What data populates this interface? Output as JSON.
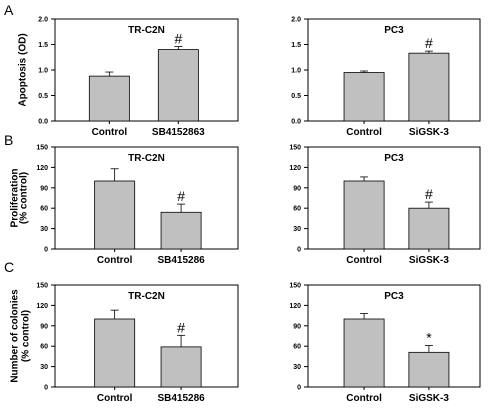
{
  "panel_letters": [
    "A",
    "B",
    "C"
  ],
  "row_ylabels": [
    [
      "Apoptosis (OD)"
    ],
    [
      "Proliferation",
      "(% control)"
    ],
    [
      "Number of colonies",
      "(% control)"
    ]
  ],
  "colors": {
    "bar": "#c0c0c0",
    "stroke": "#000000"
  },
  "chart_data": [
    {
      "type": "bar",
      "title": "TR-C2N",
      "categories": [
        "Control",
        "SB4152863"
      ],
      "values": [
        0.88,
        1.4
      ],
      "errors": [
        0.08,
        0.06
      ],
      "annotations": [
        "",
        "#"
      ],
      "ylabel": "Apoptosis (OD)",
      "ylim": [
        0,
        2.0
      ],
      "yticks": [
        "0.0",
        "0.5",
        "1.0",
        "1.5",
        "2.0"
      ],
      "ytick_values": [
        0,
        0.5,
        1.0,
        1.5,
        2.0
      ]
    },
    {
      "type": "bar",
      "title": "PC3",
      "categories": [
        "Control",
        "SiGSK-3"
      ],
      "values": [
        0.95,
        1.33
      ],
      "errors": [
        0.03,
        0.04
      ],
      "annotations": [
        "",
        "#"
      ],
      "ylim": [
        0,
        2.0
      ],
      "yticks": [
        "0.0",
        "0.5",
        "1.0",
        "1.5",
        "2.0"
      ],
      "ytick_values": [
        0,
        0.5,
        1.0,
        1.5,
        2.0
      ]
    },
    {
      "type": "bar",
      "title": "TR-C2N",
      "categories": [
        "Control",
        "SB415286"
      ],
      "values": [
        100,
        54
      ],
      "errors": [
        18,
        12
      ],
      "annotations": [
        "",
        "#"
      ],
      "ylabel": "Proliferation (% control)",
      "ylim": [
        0,
        150
      ],
      "yticks": [
        "0",
        "30",
        "60",
        "90",
        "120",
        "150"
      ],
      "ytick_values": [
        0,
        30,
        60,
        90,
        120,
        150
      ]
    },
    {
      "type": "bar",
      "title": "PC3",
      "categories": [
        "Control",
        "SiGSK-3"
      ],
      "values": [
        100,
        60
      ],
      "errors": [
        6,
        9
      ],
      "annotations": [
        "",
        "#"
      ],
      "ylim": [
        0,
        150
      ],
      "yticks": [
        "0",
        "30",
        "60",
        "90",
        "120",
        "150"
      ],
      "ytick_values": [
        0,
        30,
        60,
        90,
        120,
        150
      ]
    },
    {
      "type": "bar",
      "title": "TR-C2N",
      "categories": [
        "Control",
        "SB415286"
      ],
      "values": [
        100,
        59
      ],
      "errors": [
        13,
        17
      ],
      "annotations": [
        "",
        "#"
      ],
      "ylabel": "Number of colonies (% control)",
      "ylim": [
        0,
        150
      ],
      "yticks": [
        "0",
        "30",
        "60",
        "90",
        "120",
        "150"
      ],
      "ytick_values": [
        0,
        30,
        60,
        90,
        120,
        150
      ]
    },
    {
      "type": "bar",
      "title": "PC3",
      "categories": [
        "Control",
        "SiGSK-3"
      ],
      "values": [
        100,
        51
      ],
      "errors": [
        8,
        10
      ],
      "annotations": [
        "",
        "*"
      ],
      "ylim": [
        0,
        150
      ],
      "yticks": [
        "0",
        "30",
        "60",
        "90",
        "120",
        "150"
      ],
      "ytick_values": [
        0,
        30,
        60,
        90,
        120,
        150
      ]
    }
  ]
}
